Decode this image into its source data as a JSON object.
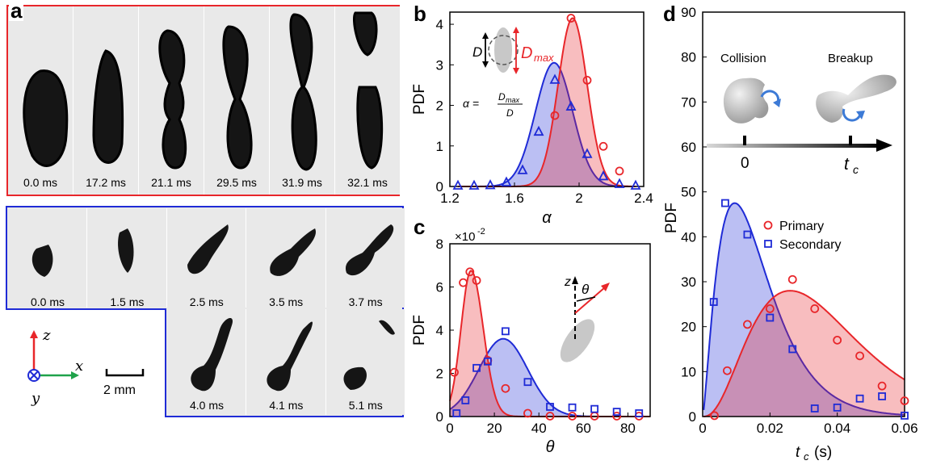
{
  "panel_a": {
    "label": "a",
    "top_row_times": [
      "0.0 ms",
      "17.2 ms",
      "21.1 ms",
      "29.5 ms",
      "31.9 ms",
      "32.1 ms"
    ],
    "bottom_row1_times": [
      "0.0 ms",
      "1.5 ms",
      "2.5 ms",
      "3.5 ms",
      "3.7 ms"
    ],
    "bottom_row2_times": [
      "4.0 ms",
      "4.1 ms",
      "5.1 ms"
    ],
    "axes": {
      "z": "z",
      "x": "x",
      "y": "y"
    },
    "scale_bar": "2 mm",
    "colors": {
      "top_border": "#e8262a",
      "bottom_border": "#1f2bd6"
    }
  },
  "chart_data": [
    {
      "panel": "b",
      "type": "line",
      "ylabel": "PDF",
      "xlabel": "α",
      "xlim": [
        1.2,
        2.4
      ],
      "ylim": [
        0,
        4.3
      ],
      "xticks": [
        "1.2",
        "1.6",
        "2",
        "2.4"
      ],
      "yticks": [
        "0",
        "1",
        "2",
        "3",
        "4"
      ],
      "inset": {
        "d_label": "D",
        "dmax_label": "D",
        "dmax_sub": "max",
        "alpha_eq_lhs": "α =",
        "alpha_eq_num": "D",
        "alpha_eq_num_sub": "max",
        "alpha_eq_den": "D"
      },
      "series": [
        {
          "color": "#1f2bd6",
          "marker": "triangle",
          "x": [
            1.25,
            1.35,
            1.45,
            1.55,
            1.65,
            1.75,
            1.85,
            1.95,
            2.05,
            2.15,
            2.25,
            2.35
          ],
          "y": [
            0.02,
            0.02,
            0.03,
            0.1,
            0.4,
            1.35,
            2.63,
            1.97,
            0.8,
            0.25,
            0.06,
            0.02
          ]
        },
        {
          "color": "#e8262a",
          "marker": "circle",
          "x": [
            1.85,
            1.95,
            2.05,
            2.15,
            2.25
          ],
          "y": [
            1.75,
            4.15,
            2.62,
            0.99,
            0.38
          ]
        }
      ]
    },
    {
      "panel": "c",
      "type": "line",
      "ylabel": "PDF",
      "xlabel": "θ",
      "multiplier": "×10",
      "multiplier_exp": "-2",
      "xlim": [
        0,
        90
      ],
      "ylim": [
        0,
        8
      ],
      "xticks": [
        "0",
        "20",
        "40",
        "60",
        "80"
      ],
      "yticks": [
        "0",
        "2",
        "4",
        "6",
        "8"
      ],
      "inset": {
        "z_label": "z",
        "theta_label": "θ"
      },
      "series": [
        {
          "color": "#e8262a",
          "marker": "circle",
          "x": [
            2,
            6,
            9,
            12,
            17,
            25,
            35,
            45,
            55,
            65,
            75,
            85
          ],
          "y": [
            2.05,
            6.2,
            6.7,
            6.3,
            2.6,
            1.3,
            0.15,
            0.02,
            0.02,
            0.02,
            0.02,
            0.02
          ]
        },
        {
          "color": "#1f2bd6",
          "marker": "square",
          "x": [
            3,
            7,
            12,
            17,
            25,
            35,
            45,
            55,
            65,
            75,
            85
          ],
          "y": [
            0.15,
            0.75,
            2.25,
            2.55,
            3.95,
            1.6,
            0.45,
            0.42,
            0.35,
            0.22,
            0.15
          ]
        }
      ]
    },
    {
      "panel": "d",
      "type": "line",
      "ylabel": "PDF",
      "xlabel": "t",
      "xlabel_sub": "c",
      "xlabel_unit": "(s)",
      "xlim": [
        0,
        0.06
      ],
      "ylim": [
        0,
        90
      ],
      "xticks": [
        "0",
        "0.02",
        "0.04",
        "0.06"
      ],
      "yticks": [
        "0",
        "10",
        "20",
        "30",
        "40",
        "50",
        "60",
        "70",
        "80",
        "90"
      ],
      "inset": {
        "collision": "Collision",
        "breakup": "Breakup",
        "zero": "0",
        "tc": "t",
        "tc_sub": "c"
      },
      "legend": [
        "Primary",
        "Secondary"
      ],
      "series": [
        {
          "name": "Primary",
          "color": "#e8262a",
          "marker": "circle",
          "x": [
            0.0035,
            0.0073,
            0.0133,
            0.02,
            0.0267,
            0.0333,
            0.04,
            0.0467,
            0.0533,
            0.06
          ],
          "y": [
            0.2,
            10.2,
            20.5,
            24.0,
            30.5,
            24.0,
            17.0,
            13.5,
            6.8,
            3.5
          ]
        },
        {
          "name": "Secondary",
          "color": "#1f2bd6",
          "marker": "square",
          "x": [
            0.0033,
            0.0067,
            0.0133,
            0.02,
            0.0267,
            0.0333,
            0.04,
            0.0467,
            0.0533,
            0.06
          ],
          "y": [
            25.5,
            47.5,
            40.5,
            22.0,
            15.0,
            1.8,
            2.0,
            4.0,
            4.5,
            0.2
          ]
        }
      ]
    }
  ]
}
